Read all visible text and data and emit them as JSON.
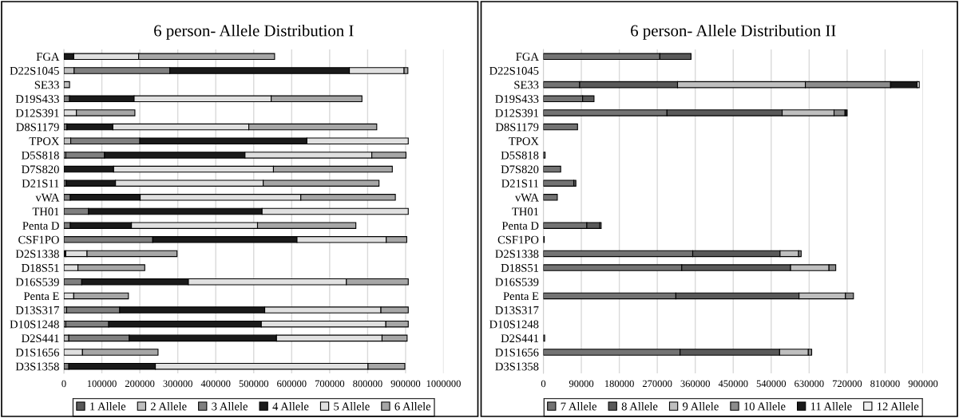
{
  "chart_data": [
    {
      "type": "bar",
      "orientation": "horizontal",
      "stacked": true,
      "title": "6 person- Allele Distribution I",
      "categories": [
        "FGA",
        "D22S1045",
        "SE33",
        "D19S433",
        "D12S391",
        "D8S1179",
        "TPOX",
        "D5S818",
        "D7S820",
        "D21S11",
        "vWA",
        "TH01",
        "Penta D",
        "CSF1PO",
        "D2S1338",
        "D18S51",
        "D16S539",
        "Penta E",
        "D13S317",
        "D10S1248",
        "D2S441",
        "D1S1656",
        "D3S1358"
      ],
      "series": [
        {
          "name": "1 Allele",
          "color": "#595959",
          "values": [
            null,
            null,
            null,
            null,
            null,
            null,
            null,
            null,
            null,
            null,
            null,
            null,
            null,
            null,
            null,
            null,
            null,
            null,
            null,
            null,
            null,
            null,
            null
          ]
        },
        {
          "name": "2 Allele",
          "color": "#bfbfbf",
          "values": [
            null,
            27000,
            15000,
            null,
            null,
            null,
            18000,
            5000,
            null,
            null,
            null,
            null,
            null,
            null,
            null,
            null,
            null,
            null,
            7000,
            5000,
            13000,
            null,
            null
          ]
        },
        {
          "name": "3 Allele",
          "color": "#7f7f7f",
          "values": [
            null,
            252000,
            null,
            15000,
            null,
            8000,
            182000,
            102000,
            null,
            6000,
            17000,
            65000,
            17000,
            234000,
            null,
            null,
            47000,
            null,
            140000,
            113000,
            159000,
            null,
            13000
          ]
        },
        {
          "name": "4 Allele",
          "color": "#1a1a1a",
          "values": [
            26000,
            473000,
            null,
            170000,
            null,
            121000,
            440000,
            370000,
            131000,
            130000,
            184000,
            457000,
            161000,
            380000,
            5000,
            null,
            281000,
            null,
            382000,
            402000,
            388000,
            null,
            228000
          ]
        },
        {
          "name": "5 Allele",
          "color": "#e0e0e0",
          "values": [
            171000,
            144000,
            null,
            361000,
            33000,
            358000,
            267000,
            334000,
            421000,
            389000,
            423000,
            385000,
            332000,
            235000,
            56000,
            37000,
            416000,
            26000,
            306000,
            328000,
            278000,
            49000,
            560000
          ]
        },
        {
          "name": "6 Allele",
          "color": "#a6a6a6",
          "values": [
            358000,
            10000,
            null,
            239000,
            154000,
            337000,
            null,
            90000,
            313000,
            305000,
            249000,
            null,
            259000,
            54000,
            237000,
            176000,
            163000,
            144000,
            72000,
            59000,
            66000,
            199000,
            97000
          ]
        }
      ],
      "xlim": [
        0,
        1000000
      ],
      "xticks": [
        0,
        100000,
        200000,
        300000,
        400000,
        500000,
        600000,
        700000,
        800000,
        900000,
        1000000
      ],
      "grid": "x",
      "legend": "bottom"
    },
    {
      "type": "bar",
      "orientation": "horizontal",
      "stacked": true,
      "title": "6 person- Allele Distribution II",
      "categories": [
        "FGA",
        "D22S1045",
        "SE33",
        "D19S433",
        "D12S391",
        "D8S1179",
        "TPOX",
        "D5S818",
        "D7S820",
        "D21S11",
        "vWA",
        "TH01",
        "Penta D",
        "CSF1PO",
        "D2S1338",
        "D18S51",
        "D16S539",
        "Penta E",
        "D13S317",
        "D10S1248",
        "D2S441",
        "D1S1656",
        "D3S1358"
      ],
      "series": [
        {
          "name": "7 Allele",
          "color": "#737373",
          "values": [
            276000,
            null,
            86000,
            93000,
            293000,
            81000,
            null,
            4000,
            41000,
            72000,
            33000,
            null,
            103000,
            2000,
            354000,
            328000,
            null,
            314000,
            null,
            null,
            3000,
            324000,
            null
          ]
        },
        {
          "name": "8 Allele",
          "color": "#595959",
          "values": [
            74000,
            null,
            232000,
            27000,
            273000,
            null,
            null,
            null,
            null,
            5000,
            null,
            null,
            31000,
            null,
            207000,
            258000,
            null,
            292000,
            null,
            null,
            null,
            236000,
            null
          ]
        },
        {
          "name": "9 Allele",
          "color": "#bfbfbf",
          "values": [
            null,
            null,
            303000,
            null,
            123000,
            null,
            null,
            null,
            null,
            null,
            null,
            null,
            3000,
            null,
            44000,
            91000,
            null,
            110000,
            null,
            null,
            null,
            68000,
            null
          ]
        },
        {
          "name": "10 Allele",
          "color": "#8c8c8c",
          "values": [
            null,
            null,
            202000,
            null,
            26000,
            null,
            null,
            null,
            null,
            null,
            null,
            null,
            null,
            null,
            6000,
            16000,
            null,
            19000,
            null,
            null,
            null,
            8000,
            null
          ]
        },
        {
          "name": "11 Allele",
          "color": "#1a1a1a",
          "values": [
            null,
            null,
            63000,
            null,
            5000,
            null,
            null,
            null,
            null,
            null,
            null,
            null,
            null,
            null,
            null,
            null,
            null,
            null,
            null,
            null,
            null,
            null,
            null
          ]
        },
        {
          "name": "12 Allele",
          "color": "#f2f2f2",
          "values": [
            null,
            null,
            5000,
            null,
            null,
            null,
            null,
            null,
            null,
            null,
            null,
            null,
            null,
            null,
            null,
            null,
            null,
            null,
            null,
            null,
            null,
            null,
            null
          ]
        }
      ],
      "xlim": [
        0,
        900000
      ],
      "xticks": [
        0,
        90000,
        180000,
        270000,
        360000,
        450000,
        540000,
        630000,
        720000,
        810000,
        900000
      ],
      "grid": "x",
      "legend": "bottom"
    }
  ]
}
